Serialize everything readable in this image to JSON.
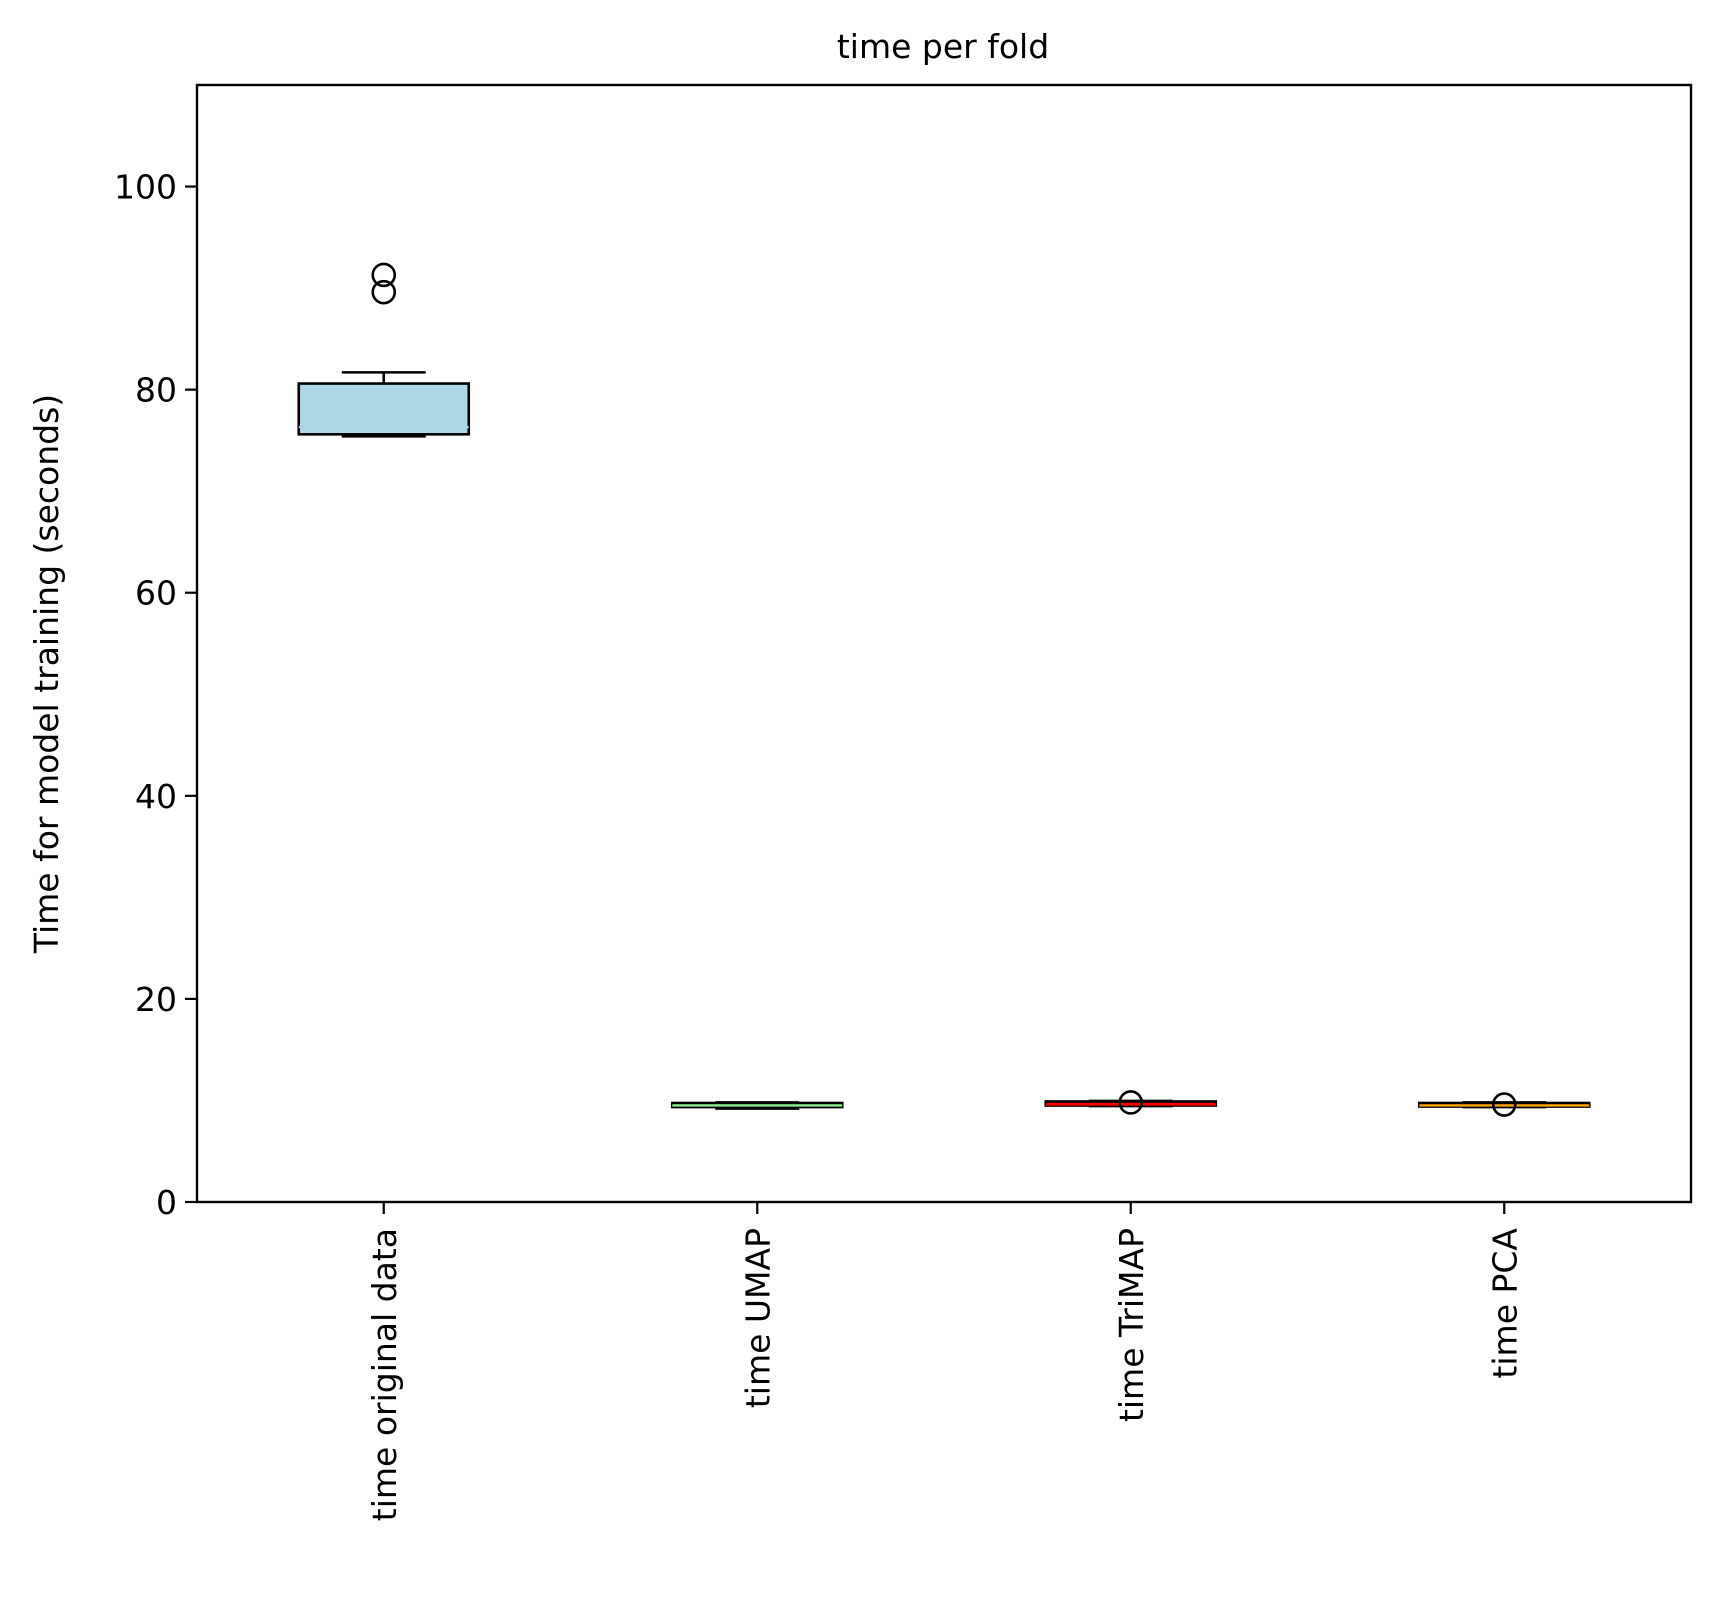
{
  "chart_data": {
    "type": "box",
    "title": "time per fold",
    "xlabel": "",
    "ylabel": "Time for model training (seconds)",
    "ylim": [
      0,
      110
    ],
    "yticks": [
      0,
      20,
      40,
      60,
      80,
      100
    ],
    "grid": false,
    "categories": [
      "time original data",
      "time UMAP",
      "time TriMAP",
      "time PCA"
    ],
    "boxes": [
      {
        "category": "time original data",
        "color": "#add8e6",
        "whisker_low": 75.4,
        "q1": 75.6,
        "median": 76.3,
        "q3": 80.6,
        "whisker_high": 81.7,
        "outliers": [
          89.6,
          91.3
        ]
      },
      {
        "category": "time UMAP",
        "color": "#90ee90",
        "whisker_low": 9.2,
        "q1": 9.35,
        "median": 9.5,
        "q3": 9.75,
        "whisker_high": 9.8,
        "outliers": []
      },
      {
        "category": "time TriMAP",
        "color": "#ff0000",
        "whisker_low": 9.45,
        "q1": 9.5,
        "median": 9.6,
        "q3": 9.9,
        "whisker_high": 9.95,
        "outliers": [
          9.8
        ]
      },
      {
        "category": "time PCA",
        "color": "#ffa500",
        "whisker_low": 9.35,
        "q1": 9.4,
        "median": 9.5,
        "q3": 9.75,
        "whisker_high": 9.8,
        "outliers": [
          9.6
        ]
      }
    ]
  }
}
